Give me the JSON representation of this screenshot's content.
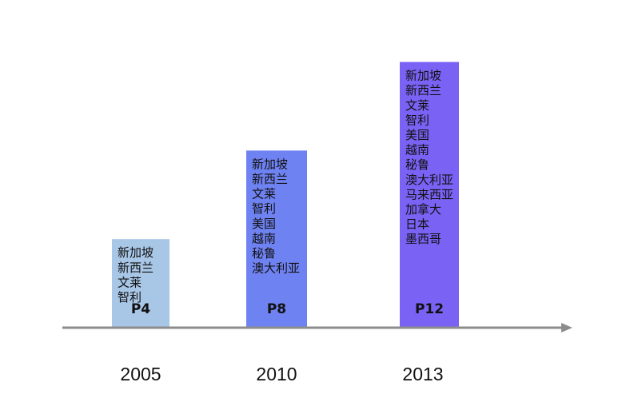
{
  "chart_data": {
    "type": "bar",
    "categories": [
      "2005",
      "2010",
      "2013"
    ],
    "values": [
      4,
      8,
      12
    ],
    "bar_labels": [
      "P4",
      "P8",
      "P12"
    ],
    "members": [
      [
        "新加坡",
        "新西兰",
        "文莱",
        "智利"
      ],
      [
        "新加坡",
        "新西兰",
        "文莱",
        "智利",
        "美国",
        "越南",
        "秘鲁",
        "澳大利亚"
      ],
      [
        "新加坡",
        "新西兰",
        "文莱",
        "智利",
        "美国",
        "越南",
        "秘鲁",
        "澳大利亚",
        "马来西亚",
        "加拿大",
        "日本",
        "墨西哥"
      ]
    ],
    "bar_colors": [
      "#a8c6e6",
      "#6f82f2",
      "#7a62f4"
    ],
    "axis_color": "#8c8c8c",
    "ylim": [
      0,
      13.5
    ],
    "grid": false,
    "legend": "none",
    "title": "",
    "xlabel": "",
    "ylabel": ""
  }
}
